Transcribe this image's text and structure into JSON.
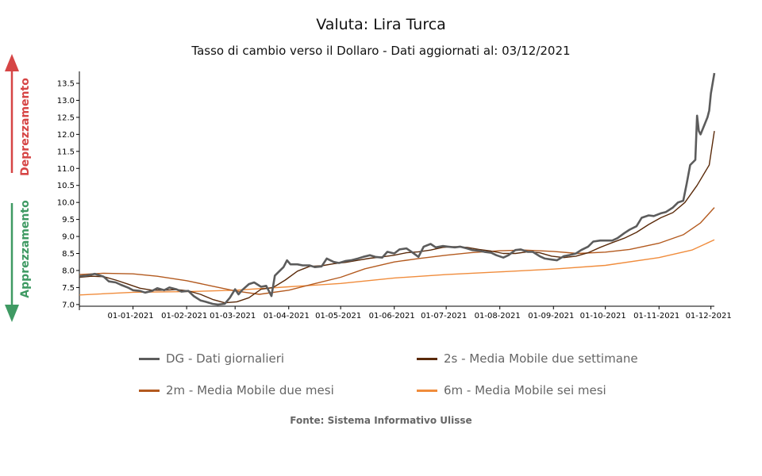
{
  "title": "Valuta: Lira Turca",
  "subtitle": "Tasso di cambio verso il Dollaro - Dati aggiornati al: 03/12/2021",
  "side_labels": {
    "up": "Deprezzamento",
    "down": "Apprezzamento"
  },
  "source": "Fonte: Sistema Informativo Ulisse",
  "colors": {
    "up_arrow": "#d64545",
    "down_arrow": "#3f9a63",
    "dg": "#5c5c5c",
    "ma2s": "#5a2a0a",
    "ma2m": "#b35a1f",
    "ma6m": "#f08c3c"
  },
  "chart_data": {
    "type": "line",
    "x_type": "date",
    "xlim": [
      "2020-12-01",
      "2021-12-03"
    ],
    "ylim": [
      6.95,
      13.85
    ],
    "grid": false,
    "legend_placement": "bottom",
    "x_ticks": [
      "01-01-2021",
      "01-02-2021",
      "01-03-2021",
      "01-04-2021",
      "01-05-2021",
      "01-06-2021",
      "01-07-2021",
      "01-08-2021",
      "01-09-2021",
      "01-10-2021",
      "01-11-2021",
      "01-12-2021"
    ],
    "y_ticks": [
      "7.0",
      "7.5",
      "8.0",
      "8.5",
      "9.0",
      "9.5",
      "10.0",
      "10.5",
      "11.0",
      "11.5",
      "12.0",
      "12.5",
      "13.0",
      "13.5"
    ],
    "series": [
      {
        "name": "DG - Dati giornalieri",
        "color": "#5c5c5c",
        "points": [
          [
            "2020-12-01",
            7.83
          ],
          [
            "2020-12-05",
            7.85
          ],
          [
            "2020-12-10",
            7.9
          ],
          [
            "2020-12-15",
            7.82
          ],
          [
            "2020-12-18",
            7.68
          ],
          [
            "2020-12-22",
            7.65
          ],
          [
            "2020-12-25",
            7.58
          ],
          [
            "2020-12-29",
            7.5
          ],
          [
            "2021-01-01",
            7.42
          ],
          [
            "2021-01-05",
            7.4
          ],
          [
            "2021-01-08",
            7.35
          ],
          [
            "2021-01-12",
            7.4
          ],
          [
            "2021-01-15",
            7.48
          ],
          [
            "2021-01-19",
            7.42
          ],
          [
            "2021-01-22",
            7.5
          ],
          [
            "2021-01-26",
            7.45
          ],
          [
            "2021-01-29",
            7.38
          ],
          [
            "2021-02-02",
            7.4
          ],
          [
            "2021-02-05",
            7.25
          ],
          [
            "2021-02-09",
            7.12
          ],
          [
            "2021-02-12",
            7.08
          ],
          [
            "2021-02-16",
            7.02
          ],
          [
            "2021-02-19",
            7.0
          ],
          [
            "2021-02-23",
            7.02
          ],
          [
            "2021-02-26",
            7.2
          ],
          [
            "2021-03-01",
            7.45
          ],
          [
            "2021-03-03",
            7.3
          ],
          [
            "2021-03-05",
            7.42
          ],
          [
            "2021-03-09",
            7.6
          ],
          [
            "2021-03-12",
            7.65
          ],
          [
            "2021-03-16",
            7.52
          ],
          [
            "2021-03-19",
            7.55
          ],
          [
            "2021-03-22",
            7.25
          ],
          [
            "2021-03-24",
            7.85
          ],
          [
            "2021-03-26",
            7.95
          ],
          [
            "2021-03-29",
            8.1
          ],
          [
            "2021-03-31",
            8.3
          ],
          [
            "2021-04-02",
            8.18
          ],
          [
            "2021-04-06",
            8.18
          ],
          [
            "2021-04-09",
            8.15
          ],
          [
            "2021-04-13",
            8.15
          ],
          [
            "2021-04-16",
            8.1
          ],
          [
            "2021-04-20",
            8.12
          ],
          [
            "2021-04-23",
            8.35
          ],
          [
            "2021-04-27",
            8.25
          ],
          [
            "2021-04-30",
            8.22
          ],
          [
            "2021-05-04",
            8.28
          ],
          [
            "2021-05-07",
            8.3
          ],
          [
            "2021-05-11",
            8.35
          ],
          [
            "2021-05-14",
            8.4
          ],
          [
            "2021-05-18",
            8.45
          ],
          [
            "2021-05-21",
            8.4
          ],
          [
            "2021-05-25",
            8.38
          ],
          [
            "2021-05-28",
            8.55
          ],
          [
            "2021-06-01",
            8.5
          ],
          [
            "2021-06-04",
            8.62
          ],
          [
            "2021-06-08",
            8.65
          ],
          [
            "2021-06-11",
            8.55
          ],
          [
            "2021-06-15",
            8.4
          ],
          [
            "2021-06-18",
            8.7
          ],
          [
            "2021-06-22",
            8.78
          ],
          [
            "2021-06-25",
            8.68
          ],
          [
            "2021-06-29",
            8.72
          ],
          [
            "2021-07-02",
            8.7
          ],
          [
            "2021-07-06",
            8.68
          ],
          [
            "2021-07-09",
            8.7
          ],
          [
            "2021-07-13",
            8.65
          ],
          [
            "2021-07-16",
            8.6
          ],
          [
            "2021-07-20",
            8.58
          ],
          [
            "2021-07-23",
            8.55
          ],
          [
            "2021-07-27",
            8.52
          ],
          [
            "2021-07-30",
            8.45
          ],
          [
            "2021-08-03",
            8.38
          ],
          [
            "2021-08-06",
            8.45
          ],
          [
            "2021-08-10",
            8.6
          ],
          [
            "2021-08-13",
            8.62
          ],
          [
            "2021-08-17",
            8.55
          ],
          [
            "2021-08-20",
            8.55
          ],
          [
            "2021-08-24",
            8.42
          ],
          [
            "2021-08-27",
            8.35
          ],
          [
            "2021-08-31",
            8.32
          ],
          [
            "2021-09-03",
            8.3
          ],
          [
            "2021-09-07",
            8.42
          ],
          [
            "2021-09-10",
            8.45
          ],
          [
            "2021-09-14",
            8.5
          ],
          [
            "2021-09-17",
            8.6
          ],
          [
            "2021-09-21",
            8.7
          ],
          [
            "2021-09-24",
            8.85
          ],
          [
            "2021-09-28",
            8.88
          ],
          [
            "2021-10-01",
            8.88
          ],
          [
            "2021-10-05",
            8.88
          ],
          [
            "2021-10-08",
            8.95
          ],
          [
            "2021-10-12",
            9.1
          ],
          [
            "2021-10-15",
            9.2
          ],
          [
            "2021-10-19",
            9.3
          ],
          [
            "2021-10-22",
            9.55
          ],
          [
            "2021-10-26",
            9.62
          ],
          [
            "2021-10-29",
            9.6
          ],
          [
            "2021-11-02",
            9.68
          ],
          [
            "2021-11-05",
            9.72
          ],
          [
            "2021-11-09",
            9.85
          ],
          [
            "2021-11-12",
            10.0
          ],
          [
            "2021-11-15",
            10.05
          ],
          [
            "2021-11-17",
            10.55
          ],
          [
            "2021-11-19",
            11.1
          ],
          [
            "2021-11-22",
            11.25
          ],
          [
            "2021-11-23",
            12.55
          ],
          [
            "2021-11-24",
            12.1
          ],
          [
            "2021-11-25",
            12.0
          ],
          [
            "2021-11-29",
            12.5
          ],
          [
            "2021-11-30",
            12.7
          ],
          [
            "2021-12-01",
            13.2
          ],
          [
            "2021-12-02",
            13.5
          ],
          [
            "2021-12-03",
            13.8
          ]
        ]
      },
      {
        "name": "2s - Media Mobile due settimane",
        "color": "#5a2a0a",
        "points": [
          [
            "2020-12-01",
            7.8
          ],
          [
            "2020-12-08",
            7.83
          ],
          [
            "2020-12-15",
            7.82
          ],
          [
            "2020-12-22",
            7.72
          ],
          [
            "2020-12-29",
            7.6
          ],
          [
            "2021-01-05",
            7.48
          ],
          [
            "2021-01-12",
            7.42
          ],
          [
            "2021-01-19",
            7.42
          ],
          [
            "2021-01-26",
            7.44
          ],
          [
            "2021-02-02",
            7.4
          ],
          [
            "2021-02-09",
            7.3
          ],
          [
            "2021-02-16",
            7.15
          ],
          [
            "2021-02-23",
            7.05
          ],
          [
            "2021-03-02",
            7.08
          ],
          [
            "2021-03-09",
            7.2
          ],
          [
            "2021-03-16",
            7.45
          ],
          [
            "2021-03-23",
            7.5
          ],
          [
            "2021-03-30",
            7.72
          ],
          [
            "2021-04-06",
            7.98
          ],
          [
            "2021-04-13",
            8.12
          ],
          [
            "2021-04-20",
            8.14
          ],
          [
            "2021-04-27",
            8.2
          ],
          [
            "2021-05-04",
            8.24
          ],
          [
            "2021-05-11",
            8.3
          ],
          [
            "2021-05-18",
            8.36
          ],
          [
            "2021-05-25",
            8.4
          ],
          [
            "2021-06-01",
            8.45
          ],
          [
            "2021-06-08",
            8.52
          ],
          [
            "2021-06-15",
            8.55
          ],
          [
            "2021-06-22",
            8.6
          ],
          [
            "2021-06-29",
            8.68
          ],
          [
            "2021-07-06",
            8.7
          ],
          [
            "2021-07-13",
            8.68
          ],
          [
            "2021-07-20",
            8.62
          ],
          [
            "2021-07-27",
            8.57
          ],
          [
            "2021-08-03",
            8.5
          ],
          [
            "2021-08-10",
            8.5
          ],
          [
            "2021-08-17",
            8.55
          ],
          [
            "2021-08-24",
            8.52
          ],
          [
            "2021-08-31",
            8.42
          ],
          [
            "2021-09-07",
            8.38
          ],
          [
            "2021-09-14",
            8.42
          ],
          [
            "2021-09-21",
            8.52
          ],
          [
            "2021-09-28",
            8.68
          ],
          [
            "2021-10-05",
            8.82
          ],
          [
            "2021-10-12",
            8.95
          ],
          [
            "2021-10-19",
            9.12
          ],
          [
            "2021-10-26",
            9.35
          ],
          [
            "2021-11-02",
            9.55
          ],
          [
            "2021-11-09",
            9.7
          ],
          [
            "2021-11-16",
            10.0
          ],
          [
            "2021-11-23",
            10.5
          ],
          [
            "2021-11-30",
            11.1
          ],
          [
            "2021-12-03",
            12.1
          ]
        ]
      },
      {
        "name": "2m - Media Mobile due mesi",
        "color": "#b35a1f",
        "points": [
          [
            "2020-12-01",
            7.88
          ],
          [
            "2020-12-15",
            7.92
          ],
          [
            "2021-01-01",
            7.9
          ],
          [
            "2021-01-15",
            7.83
          ],
          [
            "2021-02-01",
            7.7
          ],
          [
            "2021-02-15",
            7.55
          ],
          [
            "2021-03-01",
            7.4
          ],
          [
            "2021-03-15",
            7.3
          ],
          [
            "2021-04-01",
            7.42
          ],
          [
            "2021-04-15",
            7.6
          ],
          [
            "2021-05-01",
            7.8
          ],
          [
            "2021-05-15",
            8.05
          ],
          [
            "2021-06-01",
            8.25
          ],
          [
            "2021-06-15",
            8.35
          ],
          [
            "2021-07-01",
            8.45
          ],
          [
            "2021-07-15",
            8.52
          ],
          [
            "2021-08-01",
            8.58
          ],
          [
            "2021-08-15",
            8.6
          ],
          [
            "2021-09-01",
            8.56
          ],
          [
            "2021-09-15",
            8.5
          ],
          [
            "2021-10-01",
            8.54
          ],
          [
            "2021-10-15",
            8.62
          ],
          [
            "2021-11-01",
            8.8
          ],
          [
            "2021-11-15",
            9.05
          ],
          [
            "2021-11-25",
            9.4
          ],
          [
            "2021-12-03",
            9.85
          ]
        ]
      },
      {
        "name": "6m - Media Mobile sei mesi",
        "color": "#f08c3c",
        "points": [
          [
            "2020-12-01",
            7.28
          ],
          [
            "2021-01-01",
            7.36
          ],
          [
            "2021-02-01",
            7.38
          ],
          [
            "2021-03-01",
            7.42
          ],
          [
            "2021-04-01",
            7.52
          ],
          [
            "2021-05-01",
            7.62
          ],
          [
            "2021-06-01",
            7.78
          ],
          [
            "2021-07-01",
            7.88
          ],
          [
            "2021-08-01",
            7.96
          ],
          [
            "2021-09-01",
            8.04
          ],
          [
            "2021-10-01",
            8.15
          ],
          [
            "2021-11-01",
            8.38
          ],
          [
            "2021-11-20",
            8.6
          ],
          [
            "2021-12-03",
            8.9
          ]
        ]
      }
    ]
  }
}
